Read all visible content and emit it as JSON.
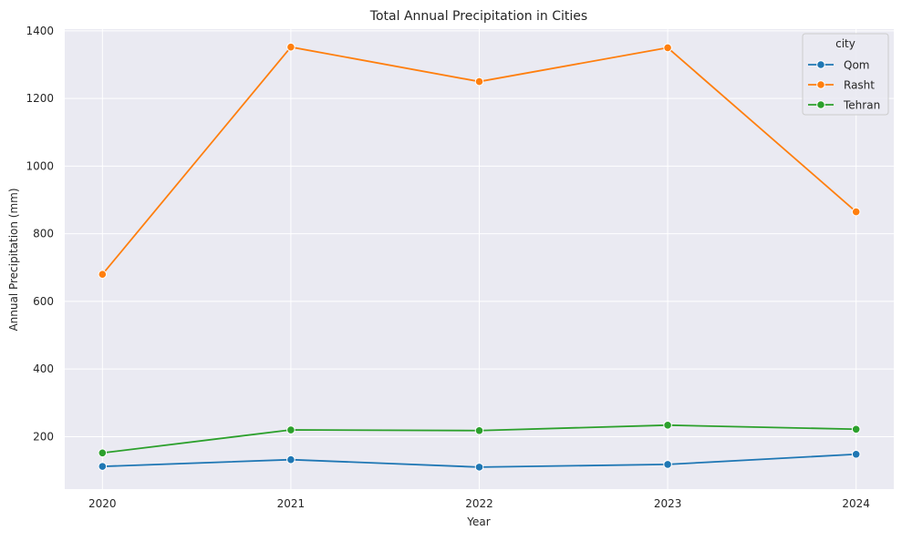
{
  "chart_data": {
    "type": "line",
    "title": "Total Annual Precipitation in Cities",
    "xlabel": "Year",
    "ylabel": "Annual Precipitation (mm)",
    "x": [
      "2020",
      "2021",
      "2022",
      "2023",
      "2024"
    ],
    "xlim": [
      2019.8,
      2024.2
    ],
    "ylim": [
      45,
      1405
    ],
    "yticks": [
      200,
      400,
      600,
      800,
      1000,
      1200,
      1400
    ],
    "grid": true,
    "legend": {
      "title": "city",
      "placement": "top-right"
    },
    "series": [
      {
        "name": "Qom",
        "color": "#1f77b4",
        "values": [
          112,
          132,
          110,
          118,
          148
        ]
      },
      {
        "name": "Rasht",
        "color": "#ff7f0e",
        "values": [
          680,
          1352,
          1250,
          1350,
          865
        ]
      },
      {
        "name": "Tehran",
        "color": "#2ca02c",
        "values": [
          152,
          220,
          218,
          234,
          222
        ]
      }
    ]
  }
}
